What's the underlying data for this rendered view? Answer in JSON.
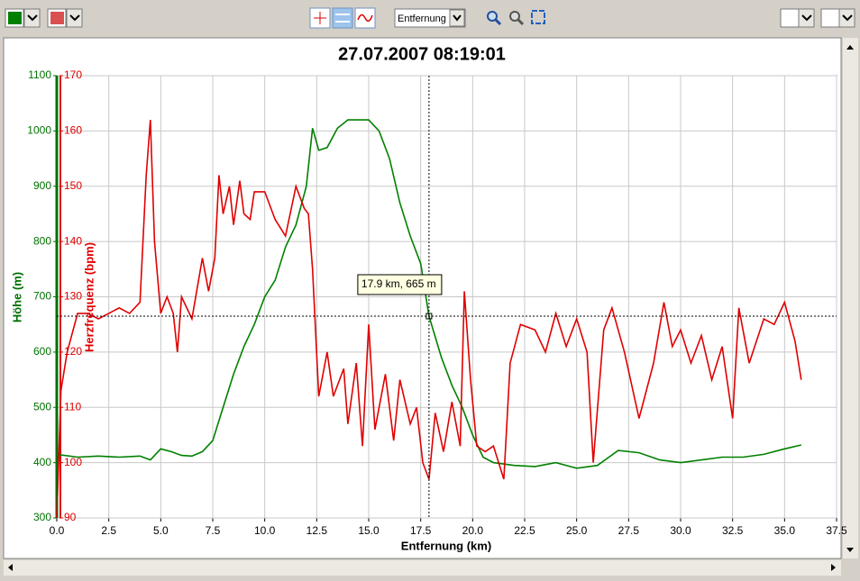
{
  "toolbar": {
    "dropdown": "Entfernung"
  },
  "chart_data": {
    "type": "line",
    "title": "27.07.2007 08:19:01",
    "x_label": "Entfernung (km)",
    "y_label": "Höhe (m)",
    "y2_label": "Herzfrequenz (bpm)",
    "annotation": "17.9 km, 665 m",
    "crosshair": {
      "x": 17.9,
      "y": 665
    },
    "xlim": [
      0,
      37.5
    ],
    "xticks": [
      {
        "value": 0,
        "label": "0.0"
      },
      2.5,
      {
        "value": 5,
        "label": "5.0"
      },
      7.5,
      {
        "value": 10,
        "label": "10.0"
      },
      12.5,
      {
        "value": 15,
        "label": "15.0"
      },
      17.5,
      {
        "value": 20,
        "label": "20.0"
      },
      22.5,
      {
        "value": 25,
        "label": "25.0"
      },
      27.5,
      {
        "value": 30,
        "label": "30.0"
      },
      32.5,
      {
        "value": 35,
        "label": "35.0"
      },
      37.5
    ],
    "ylim": [
      300,
      1100
    ],
    "yticks": [
      300,
      400,
      500,
      600,
      700,
      800,
      900,
      1000,
      1100
    ],
    "y2lim": [
      90,
      170
    ],
    "y2ticks": [
      90,
      100,
      110,
      120,
      130,
      140,
      150,
      160,
      170
    ],
    "grid": true,
    "y_color": "#007000",
    "y2_color": "#e00000",
    "series": [
      {
        "name": "Höhe",
        "color": "#008000",
        "axis": "y",
        "x": [
          0,
          1,
          2,
          3,
          4,
          4.5,
          5,
          5.5,
          6,
          6.5,
          7,
          7.5,
          8,
          8.5,
          9,
          9.5,
          10,
          10.5,
          11,
          11.5,
          12,
          12.3,
          12.6,
          13,
          13.5,
          14,
          14.5,
          15,
          15.5,
          16,
          16.5,
          17,
          17.5,
          17.9,
          18.5,
          19,
          19.5,
          20,
          20.5,
          21,
          22,
          23,
          24,
          25,
          26,
          27,
          28,
          29,
          30,
          31,
          32,
          33,
          34,
          35,
          35.8
        ],
        "values": [
          415,
          410,
          412,
          410,
          412,
          405,
          425,
          420,
          413,
          412,
          420,
          440,
          500,
          560,
          610,
          650,
          700,
          730,
          790,
          830,
          900,
          1005,
          965,
          970,
          1005,
          1020,
          1020,
          1020,
          1000,
          950,
          870,
          810,
          760,
          665,
          590,
          540,
          500,
          450,
          410,
          400,
          395,
          393,
          400,
          390,
          395,
          422,
          418,
          405,
          400,
          405,
          410,
          410,
          415,
          425,
          432
        ]
      },
      {
        "name": "Herzfrequenz",
        "color": "#e00000",
        "axis": "y2",
        "x": [
          0,
          0.2,
          0.5,
          1,
          1.5,
          2,
          2.5,
          3,
          3.5,
          4,
          4.3,
          4.5,
          4.7,
          5,
          5.3,
          5.6,
          5.8,
          6,
          6.5,
          7,
          7.3,
          7.6,
          7.8,
          8,
          8.3,
          8.5,
          8.8,
          9,
          9.3,
          9.5,
          10,
          10.5,
          11,
          11.5,
          11.9,
          12.1,
          12.3,
          12.6,
          13,
          13.3,
          13.8,
          14,
          14.4,
          14.7,
          15,
          15.3,
          15.8,
          16.2,
          16.5,
          17,
          17.3,
          17.6,
          17.9,
          18.2,
          18.6,
          19,
          19.4,
          19.6,
          19.9,
          20.2,
          20.6,
          21,
          21.5,
          21.8,
          22.3,
          23,
          23.5,
          24,
          24.5,
          25,
          25.5,
          25.8,
          26.3,
          26.7,
          27.3,
          28,
          28.7,
          29.2,
          29.6,
          30,
          30.5,
          31,
          31.5,
          32,
          32.5,
          32.8,
          33.3,
          34,
          34.5,
          35,
          35.5,
          35.8
        ],
        "values": [
          90,
          113,
          120,
          127,
          127,
          126,
          127,
          128,
          127,
          129,
          152,
          162,
          140,
          127,
          130,
          127,
          120,
          130,
          126,
          137,
          131,
          137,
          152,
          145,
          150,
          143,
          151,
          145,
          144,
          149,
          149,
          144,
          141,
          150,
          146,
          145,
          135,
          112,
          120,
          112,
          117,
          107,
          118,
          103,
          125,
          106,
          116,
          104,
          115,
          107,
          110,
          100,
          97,
          109,
          102,
          111,
          103,
          131,
          115,
          103,
          102,
          103,
          97,
          118,
          125,
          124,
          120,
          127,
          121,
          126,
          120,
          100,
          124,
          128,
          120,
          108,
          118,
          129,
          121,
          124,
          118,
          123,
          115,
          121,
          108,
          128,
          118,
          126,
          125,
          129,
          122,
          115
        ]
      }
    ]
  }
}
